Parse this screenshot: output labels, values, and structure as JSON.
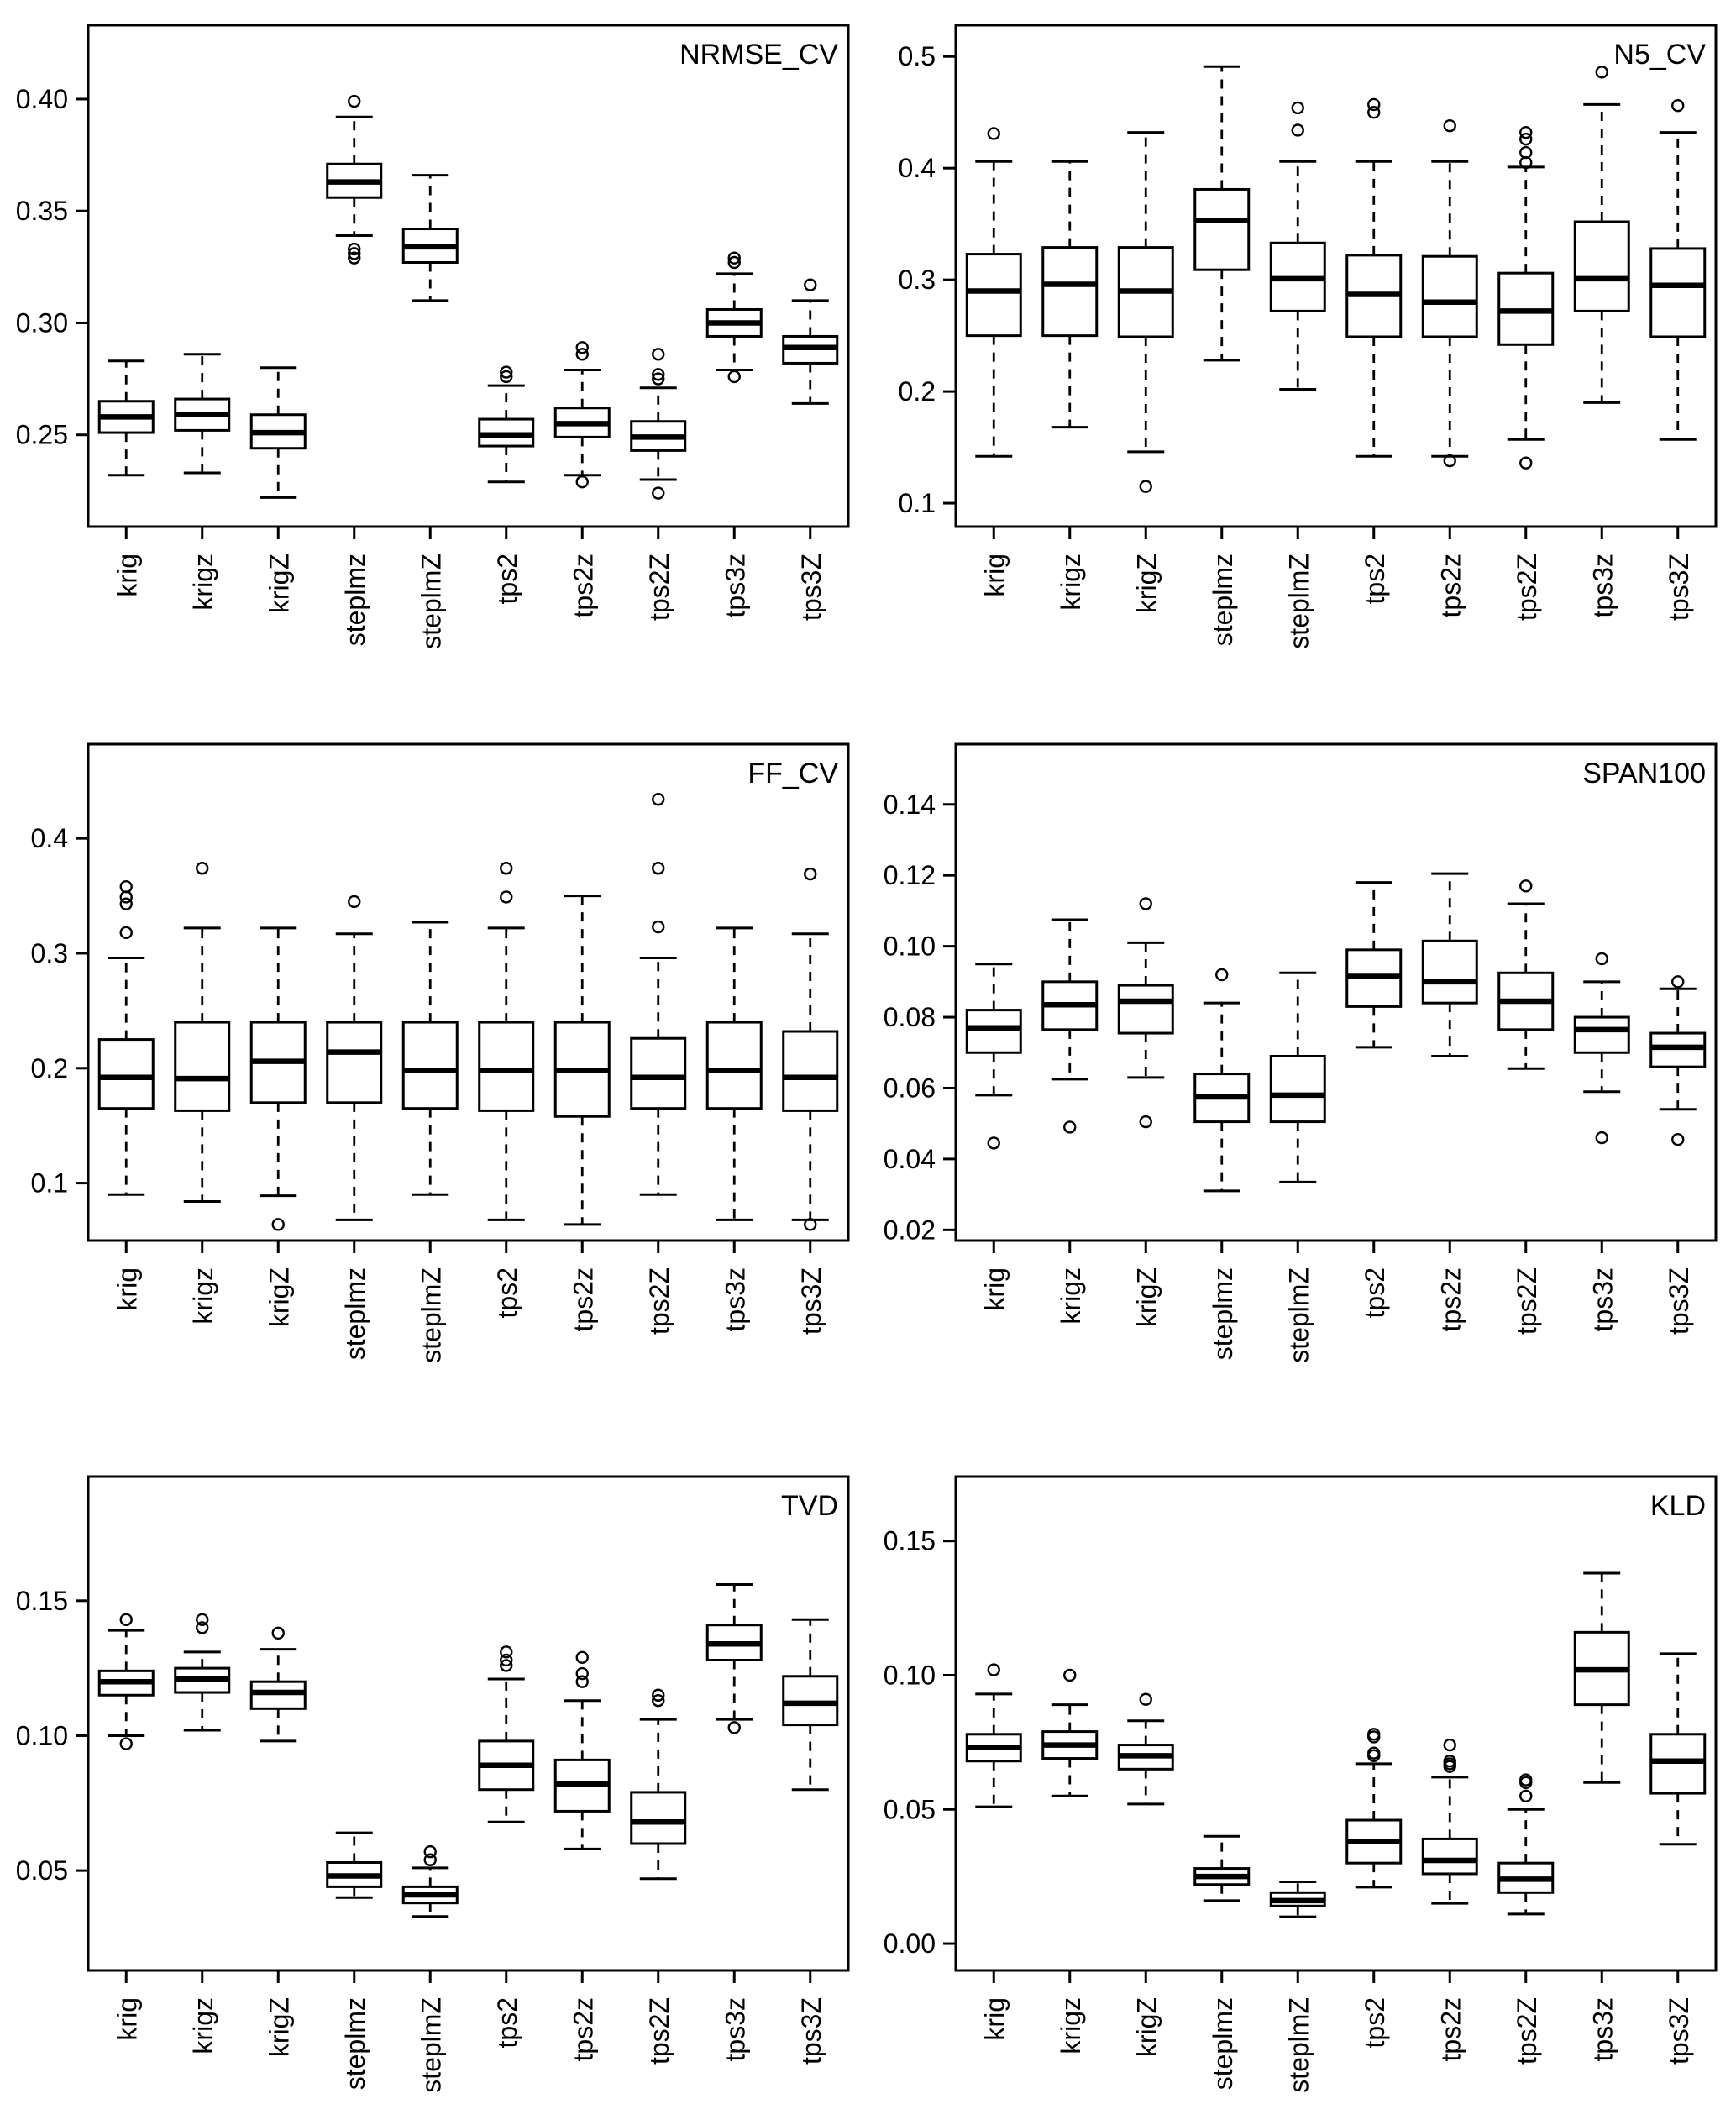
{
  "figure": {
    "background": "#ffffff",
    "ink_color": "#000000",
    "rows": 3,
    "columns": 2,
    "panel_titles": [
      "NRMSE_CV",
      "N5_CV",
      "FF_CV",
      "SPAN100",
      "TVD",
      "KLD"
    ]
  },
  "chart_data": [
    {
      "type": "boxplot",
      "title": "NRMSE_CV",
      "grid": false,
      "legend": "none",
      "categories": [
        "krig",
        "krigz",
        "krigZ",
        "steplmz",
        "steplmZ",
        "tps2",
        "tps2z",
        "tps2Z",
        "tps3z",
        "tps3Z"
      ],
      "ylim": [
        0.209,
        0.433
      ],
      "yticks": [
        0.25,
        0.3,
        0.35,
        0.4
      ],
      "ytick_labels": [
        "0.25",
        "0.30",
        "0.35",
        "0.40"
      ],
      "boxes": [
        {
          "category": "krig",
          "whisker_low": 0.232,
          "q1": 0.251,
          "median": 0.258,
          "q3": 0.265,
          "whisker_high": 0.283,
          "outliers": []
        },
        {
          "category": "krigz",
          "whisker_low": 0.233,
          "q1": 0.252,
          "median": 0.259,
          "q3": 0.266,
          "whisker_high": 0.286,
          "outliers": []
        },
        {
          "category": "krigZ",
          "whisker_low": 0.222,
          "q1": 0.244,
          "median": 0.251,
          "q3": 0.259,
          "whisker_high": 0.28,
          "outliers": []
        },
        {
          "category": "steplmz",
          "whisker_low": 0.339,
          "q1": 0.356,
          "median": 0.363,
          "q3": 0.371,
          "whisker_high": 0.392,
          "outliers": [
            0.399,
            0.333,
            0.331,
            0.329
          ]
        },
        {
          "category": "steplmZ",
          "whisker_low": 0.31,
          "q1": 0.327,
          "median": 0.334,
          "q3": 0.342,
          "whisker_high": 0.366,
          "outliers": []
        },
        {
          "category": "tps2",
          "whisker_low": 0.229,
          "q1": 0.245,
          "median": 0.25,
          "q3": 0.257,
          "whisker_high": 0.272,
          "outliers": [
            0.278,
            0.276
          ]
        },
        {
          "category": "tps2z",
          "whisker_low": 0.232,
          "q1": 0.249,
          "median": 0.255,
          "q3": 0.262,
          "whisker_high": 0.279,
          "outliers": [
            0.289,
            0.286,
            0.229
          ]
        },
        {
          "category": "tps2Z",
          "whisker_low": 0.23,
          "q1": 0.243,
          "median": 0.249,
          "q3": 0.256,
          "whisker_high": 0.271,
          "outliers": [
            0.286,
            0.277,
            0.275,
            0.224
          ]
        },
        {
          "category": "tps3z",
          "whisker_low": 0.279,
          "q1": 0.294,
          "median": 0.3,
          "q3": 0.306,
          "whisker_high": 0.322,
          "outliers": [
            0.329,
            0.327,
            0.276
          ]
        },
        {
          "category": "tps3Z",
          "whisker_low": 0.264,
          "q1": 0.282,
          "median": 0.289,
          "q3": 0.294,
          "whisker_high": 0.31,
          "outliers": [
            0.317
          ]
        }
      ]
    },
    {
      "type": "boxplot",
      "title": "N5_CV",
      "grid": false,
      "legend": "none",
      "categories": [
        "krig",
        "krigz",
        "krigZ",
        "steplmz",
        "steplmZ",
        "tps2",
        "tps2z",
        "tps2Z",
        "tps3z",
        "tps3Z"
      ],
      "ylim": [
        0.079,
        0.528
      ],
      "yticks": [
        0.1,
        0.2,
        0.3,
        0.4,
        0.5
      ],
      "ytick_labels": [
        "0.1",
        "0.2",
        "0.3",
        "0.4",
        "0.5"
      ],
      "boxes": [
        {
          "category": "krig",
          "whisker_low": 0.142,
          "q1": 0.25,
          "median": 0.29,
          "q3": 0.323,
          "whisker_high": 0.406,
          "outliers": [
            0.431
          ]
        },
        {
          "category": "krigz",
          "whisker_low": 0.168,
          "q1": 0.25,
          "median": 0.296,
          "q3": 0.329,
          "whisker_high": 0.406,
          "outliers": []
        },
        {
          "category": "krigZ",
          "whisker_low": 0.146,
          "q1": 0.249,
          "median": 0.29,
          "q3": 0.329,
          "whisker_high": 0.432,
          "outliers": [
            0.115
          ]
        },
        {
          "category": "steplmz",
          "whisker_low": 0.228,
          "q1": 0.309,
          "median": 0.353,
          "q3": 0.381,
          "whisker_high": 0.491,
          "outliers": []
        },
        {
          "category": "steplmZ",
          "whisker_low": 0.202,
          "q1": 0.272,
          "median": 0.301,
          "q3": 0.333,
          "whisker_high": 0.406,
          "outliers": [
            0.454,
            0.434
          ]
        },
        {
          "category": "tps2",
          "whisker_low": 0.142,
          "q1": 0.249,
          "median": 0.287,
          "q3": 0.322,
          "whisker_high": 0.406,
          "outliers": [
            0.457,
            0.45
          ]
        },
        {
          "category": "tps2z",
          "whisker_low": 0.142,
          "q1": 0.249,
          "median": 0.28,
          "q3": 0.321,
          "whisker_high": 0.406,
          "outliers": [
            0.438,
            0.138
          ]
        },
        {
          "category": "tps2Z",
          "whisker_low": 0.157,
          "q1": 0.242,
          "median": 0.272,
          "q3": 0.306,
          "whisker_high": 0.401,
          "outliers": [
            0.432,
            0.426,
            0.414,
            0.405,
            0.136
          ]
        },
        {
          "category": "tps3z",
          "whisker_low": 0.19,
          "q1": 0.272,
          "median": 0.301,
          "q3": 0.352,
          "whisker_high": 0.457,
          "outliers": [
            0.486
          ]
        },
        {
          "category": "tps3Z",
          "whisker_low": 0.157,
          "q1": 0.249,
          "median": 0.295,
          "q3": 0.328,
          "whisker_high": 0.432,
          "outliers": [
            0.456
          ]
        }
      ]
    },
    {
      "type": "boxplot",
      "title": "FF_CV",
      "grid": false,
      "legend": "none",
      "categories": [
        "krig",
        "krigz",
        "krigZ",
        "steplmz",
        "steplmZ",
        "tps2",
        "tps2z",
        "tps2Z",
        "tps3z",
        "tps3Z"
      ],
      "ylim": [
        0.05,
        0.482
      ],
      "yticks": [
        0.1,
        0.2,
        0.3,
        0.4
      ],
      "ytick_labels": [
        "0.1",
        "0.2",
        "0.3",
        "0.4"
      ],
      "boxes": [
        {
          "category": "krig",
          "whisker_low": 0.09,
          "q1": 0.165,
          "median": 0.192,
          "q3": 0.225,
          "whisker_high": 0.296,
          "outliers": [
            0.358,
            0.349,
            0.343,
            0.318
          ]
        },
        {
          "category": "krigz",
          "whisker_low": 0.084,
          "q1": 0.163,
          "median": 0.191,
          "q3": 0.24,
          "whisker_high": 0.322,
          "outliers": [
            0.374
          ]
        },
        {
          "category": "krigZ",
          "whisker_low": 0.089,
          "q1": 0.17,
          "median": 0.206,
          "q3": 0.24,
          "whisker_high": 0.322,
          "outliers": [
            0.064
          ]
        },
        {
          "category": "steplmz",
          "whisker_low": 0.068,
          "q1": 0.17,
          "median": 0.214,
          "q3": 0.24,
          "whisker_high": 0.317,
          "outliers": [
            0.345
          ]
        },
        {
          "category": "steplmZ",
          "whisker_low": 0.09,
          "q1": 0.165,
          "median": 0.198,
          "q3": 0.24,
          "whisker_high": 0.327,
          "outliers": []
        },
        {
          "category": "tps2",
          "whisker_low": 0.068,
          "q1": 0.163,
          "median": 0.198,
          "q3": 0.24,
          "whisker_high": 0.322,
          "outliers": [
            0.374,
            0.349
          ]
        },
        {
          "category": "tps2z",
          "whisker_low": 0.064,
          "q1": 0.158,
          "median": 0.198,
          "q3": 0.24,
          "whisker_high": 0.35,
          "outliers": []
        },
        {
          "category": "tps2Z",
          "whisker_low": 0.09,
          "q1": 0.165,
          "median": 0.192,
          "q3": 0.226,
          "whisker_high": 0.296,
          "outliers": [
            0.434,
            0.374,
            0.323
          ]
        },
        {
          "category": "tps3z",
          "whisker_low": 0.068,
          "q1": 0.165,
          "median": 0.198,
          "q3": 0.24,
          "whisker_high": 0.322,
          "outliers": []
        },
        {
          "category": "tps3Z",
          "whisker_low": 0.068,
          "q1": 0.163,
          "median": 0.192,
          "q3": 0.232,
          "whisker_high": 0.317,
          "outliers": [
            0.369,
            0.064
          ]
        }
      ]
    },
    {
      "type": "boxplot",
      "title": "SPAN100",
      "grid": false,
      "legend": "none",
      "categories": [
        "krig",
        "krigz",
        "krigZ",
        "steplmz",
        "steplmZ",
        "tps2",
        "tps2z",
        "tps2Z",
        "tps3z",
        "tps3Z"
      ],
      "ylim": [
        0.017,
        0.157
      ],
      "yticks": [
        0.02,
        0.04,
        0.06,
        0.08,
        0.1,
        0.12,
        0.14
      ],
      "ytick_labels": [
        "0.02",
        "0.04",
        "0.06",
        "0.08",
        "0.10",
        "0.12",
        "0.14"
      ],
      "boxes": [
        {
          "category": "krig",
          "whisker_low": 0.058,
          "q1": 0.07,
          "median": 0.077,
          "q3": 0.082,
          "whisker_high": 0.095,
          "outliers": [
            0.0445
          ]
        },
        {
          "category": "krigz",
          "whisker_low": 0.0625,
          "q1": 0.0765,
          "median": 0.0835,
          "q3": 0.09,
          "whisker_high": 0.1075,
          "outliers": [
            0.049
          ]
        },
        {
          "category": "krigZ",
          "whisker_low": 0.063,
          "q1": 0.0755,
          "median": 0.0845,
          "q3": 0.089,
          "whisker_high": 0.101,
          "outliers": [
            0.112,
            0.0505
          ]
        },
        {
          "category": "steplmz",
          "whisker_low": 0.031,
          "q1": 0.0505,
          "median": 0.0575,
          "q3": 0.064,
          "whisker_high": 0.084,
          "outliers": [
            0.092
          ]
        },
        {
          "category": "steplmZ",
          "whisker_low": 0.0335,
          "q1": 0.0505,
          "median": 0.058,
          "q3": 0.069,
          "whisker_high": 0.0925,
          "outliers": []
        },
        {
          "category": "tps2",
          "whisker_low": 0.0715,
          "q1": 0.083,
          "median": 0.0915,
          "q3": 0.099,
          "whisker_high": 0.118,
          "outliers": []
        },
        {
          "category": "tps2z",
          "whisker_low": 0.069,
          "q1": 0.084,
          "median": 0.09,
          "q3": 0.1015,
          "whisker_high": 0.1205,
          "outliers": []
        },
        {
          "category": "tps2Z",
          "whisker_low": 0.0655,
          "q1": 0.0765,
          "median": 0.0845,
          "q3": 0.0925,
          "whisker_high": 0.112,
          "outliers": [
            0.117
          ]
        },
        {
          "category": "tps3z",
          "whisker_low": 0.059,
          "q1": 0.07,
          "median": 0.0765,
          "q3": 0.08,
          "whisker_high": 0.09,
          "outliers": [
            0.0965,
            0.046
          ]
        },
        {
          "category": "tps3Z",
          "whisker_low": 0.054,
          "q1": 0.066,
          "median": 0.0715,
          "q3": 0.0755,
          "whisker_high": 0.088,
          "outliers": [
            0.09,
            0.0455
          ]
        }
      ]
    },
    {
      "type": "boxplot",
      "title": "TVD",
      "grid": false,
      "legend": "none",
      "categories": [
        "krig",
        "krigz",
        "krigZ",
        "steplmz",
        "steplmZ",
        "tps2",
        "tps2z",
        "tps2Z",
        "tps3z",
        "tps3Z"
      ],
      "ylim": [
        0.013,
        0.196
      ],
      "yticks": [
        0.05,
        0.1,
        0.15
      ],
      "ytick_labels": [
        "0.05",
        "0.10",
        "0.15"
      ],
      "boxes": [
        {
          "category": "krig",
          "whisker_low": 0.1,
          "q1": 0.115,
          "median": 0.12,
          "q3": 0.124,
          "whisker_high": 0.139,
          "outliers": [
            0.143,
            0.097
          ]
        },
        {
          "category": "krigz",
          "whisker_low": 0.102,
          "q1": 0.116,
          "median": 0.121,
          "q3": 0.125,
          "whisker_high": 0.131,
          "outliers": [
            0.143,
            0.14
          ]
        },
        {
          "category": "krigZ",
          "whisker_low": 0.098,
          "q1": 0.11,
          "median": 0.116,
          "q3": 0.12,
          "whisker_high": 0.132,
          "outliers": [
            0.138
          ]
        },
        {
          "category": "steplmz",
          "whisker_low": 0.04,
          "q1": 0.044,
          "median": 0.048,
          "q3": 0.053,
          "whisker_high": 0.064,
          "outliers": []
        },
        {
          "category": "steplmZ",
          "whisker_low": 0.033,
          "q1": 0.038,
          "median": 0.041,
          "q3": 0.044,
          "whisker_high": 0.051,
          "outliers": [
            0.057,
            0.054
          ]
        },
        {
          "category": "tps2",
          "whisker_low": 0.068,
          "q1": 0.08,
          "median": 0.089,
          "q3": 0.098,
          "whisker_high": 0.121,
          "outliers": [
            0.131,
            0.128,
            0.126
          ]
        },
        {
          "category": "tps2z",
          "whisker_low": 0.058,
          "q1": 0.072,
          "median": 0.082,
          "q3": 0.091,
          "whisker_high": 0.113,
          "outliers": [
            0.129,
            0.123,
            0.12
          ]
        },
        {
          "category": "tps2Z",
          "whisker_low": 0.047,
          "q1": 0.06,
          "median": 0.068,
          "q3": 0.079,
          "whisker_high": 0.106,
          "outliers": [
            0.115,
            0.113
          ]
        },
        {
          "category": "tps3z",
          "whisker_low": 0.106,
          "q1": 0.128,
          "median": 0.134,
          "q3": 0.141,
          "whisker_high": 0.156,
          "outliers": [
            0.103
          ]
        },
        {
          "category": "tps3Z",
          "whisker_low": 0.08,
          "q1": 0.104,
          "median": 0.112,
          "q3": 0.122,
          "whisker_high": 0.143,
          "outliers": []
        }
      ]
    },
    {
      "type": "boxplot",
      "title": "KLD",
      "grid": false,
      "legend": "none",
      "categories": [
        "krig",
        "krigz",
        "krigZ",
        "steplmz",
        "steplmZ",
        "tps2",
        "tps2z",
        "tps2Z",
        "tps3z",
        "tps3Z"
      ],
      "ylim": [
        -0.01,
        0.174
      ],
      "yticks": [
        0.0,
        0.05,
        0.1,
        0.15
      ],
      "ytick_labels": [
        "0.00",
        "0.05",
        "0.10",
        "0.15"
      ],
      "boxes": [
        {
          "category": "krig",
          "whisker_low": 0.051,
          "q1": 0.068,
          "median": 0.073,
          "q3": 0.078,
          "whisker_high": 0.093,
          "outliers": [
            0.102
          ]
        },
        {
          "category": "krigz",
          "whisker_low": 0.055,
          "q1": 0.069,
          "median": 0.074,
          "q3": 0.079,
          "whisker_high": 0.089,
          "outliers": [
            0.1
          ]
        },
        {
          "category": "krigZ",
          "whisker_low": 0.052,
          "q1": 0.065,
          "median": 0.07,
          "q3": 0.074,
          "whisker_high": 0.083,
          "outliers": [
            0.091
          ]
        },
        {
          "category": "steplmz",
          "whisker_low": 0.016,
          "q1": 0.022,
          "median": 0.025,
          "q3": 0.028,
          "whisker_high": 0.04,
          "outliers": []
        },
        {
          "category": "steplmZ",
          "whisker_low": 0.01,
          "q1": 0.014,
          "median": 0.016,
          "q3": 0.019,
          "whisker_high": 0.023,
          "outliers": []
        },
        {
          "category": "tps2",
          "whisker_low": 0.021,
          "q1": 0.03,
          "median": 0.038,
          "q3": 0.046,
          "whisker_high": 0.067,
          "outliers": [
            0.078,
            0.077,
            0.071,
            0.07
          ]
        },
        {
          "category": "tps2z",
          "whisker_low": 0.015,
          "q1": 0.026,
          "median": 0.031,
          "q3": 0.039,
          "whisker_high": 0.062,
          "outliers": [
            0.074,
            0.068,
            0.067,
            0.066
          ]
        },
        {
          "category": "tps2Z",
          "whisker_low": 0.011,
          "q1": 0.019,
          "median": 0.024,
          "q3": 0.03,
          "whisker_high": 0.05,
          "outliers": [
            0.061,
            0.06,
            0.055
          ]
        },
        {
          "category": "tps3z",
          "whisker_low": 0.06,
          "q1": 0.089,
          "median": 0.102,
          "q3": 0.116,
          "whisker_high": 0.138,
          "outliers": []
        },
        {
          "category": "tps3Z",
          "whisker_low": 0.037,
          "q1": 0.056,
          "median": 0.068,
          "q3": 0.078,
          "whisker_high": 0.108,
          "outliers": []
        }
      ]
    }
  ]
}
